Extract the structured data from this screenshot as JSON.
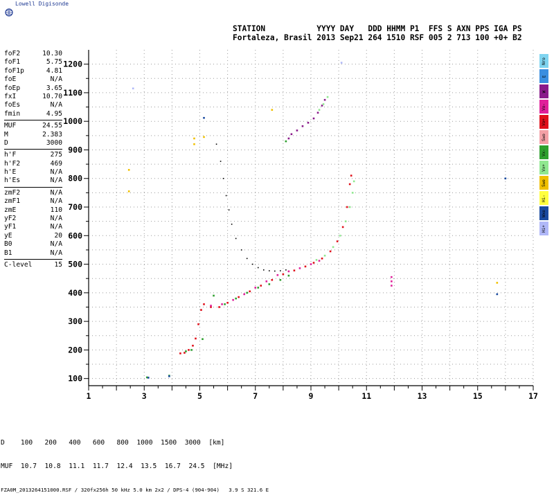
{
  "brand": "Lowell Digisonde",
  "header": {
    "line1": "STATION           YYYY DAY   DDD HHMM P1  FFS S AXN PPS IGA PS",
    "line2": "Fortaleza, Brasil 2013 Sep21 264 1510 RSF 005 2 713 100 +0+ B2"
  },
  "params": [
    [
      [
        "foF2",
        "10.30"
      ],
      [
        "foF1",
        "5.75"
      ],
      [
        "foF1p",
        "4.81"
      ],
      [
        "foE",
        "N/A"
      ],
      [
        "foEp",
        "3.65"
      ],
      [
        "fxI",
        "10.70"
      ],
      [
        "foEs",
        "N/A"
      ],
      [
        "fmin",
        "4.95"
      ]
    ],
    [
      [
        "MUF",
        "24.55"
      ],
      [
        "M",
        "2.383"
      ],
      [
        "D",
        "3000"
      ]
    ],
    [
      [
        "h'F",
        "275"
      ],
      [
        "h'F2",
        "469"
      ],
      [
        "h'E",
        "N/A"
      ],
      [
        "h'Es",
        "N/A"
      ]
    ],
    [
      [
        "zmF2",
        "N/A"
      ],
      [
        "zmF1",
        "N/A"
      ],
      [
        "zmE",
        "110"
      ],
      [
        "yF2",
        "N/A"
      ],
      [
        "yF1",
        "N/A"
      ],
      [
        "yE",
        "20"
      ],
      [
        "B0",
        "N/A"
      ],
      [
        "B1",
        "N/A"
      ]
    ],
    [
      [
        "C-level",
        "15"
      ]
    ]
  ],
  "legend": [
    {
      "label": "Nro",
      "color": "#7fd4f0"
    },
    {
      "label": "E",
      "color": "#3a8ee0"
    },
    {
      "label": "W",
      "color": "#8a1a8a"
    },
    {
      "label": "Vo-",
      "color": "#e0209a"
    },
    {
      "label": "Vo+",
      "color": "#e0101a"
    },
    {
      "label": "Swo",
      "color": "#f4a0a6"
    },
    {
      "label": "Vx-",
      "color": "#2ea02e"
    },
    {
      "label": "Vx+",
      "color": "#90e890"
    },
    {
      "label": "Swe",
      "color": "#f0c000"
    },
    {
      "label": "Hi-",
      "color": "#ffff40"
    },
    {
      "label": "Wxe",
      "color": "#1a4aa0"
    },
    {
      "label": "Hi+",
      "color": "#b0b8f8"
    }
  ],
  "bottom": {
    "d_row": "D    100   200   400   600   800  1000  1500  3000  [km]",
    "muf_row": "MUF  10.7  10.8  11.1  11.7  12.4  13.5  16.7  24.5  [MHz]",
    "file": "FZA0M_2013264151000.RSF / 320fx256h 50 kHz 5.0 km 2x2 / DPS-4 (904-904)   3.9 S 321.6 E"
  },
  "chart_data": {
    "type": "scatter",
    "xlabel": "",
    "ylabel": "",
    "xlim": [
      1,
      17
    ],
    "ylim": [
      75,
      1250
    ],
    "xticks": [
      "1",
      "3",
      "5",
      "7",
      "9",
      "11",
      "13",
      "15",
      "17"
    ],
    "yticks": [
      "100",
      "200",
      "300",
      "400",
      "500",
      "600",
      "700",
      "800",
      "900",
      "1000",
      "1100",
      "1200"
    ],
    "grid": true,
    "series": [
      {
        "color": "#e0101a",
        "points": [
          [
            4.3,
            188
          ],
          [
            4.45,
            190
          ],
          [
            4.6,
            200
          ],
          [
            4.75,
            215
          ],
          [
            4.85,
            240
          ],
          [
            4.95,
            290
          ],
          [
            5.05,
            340
          ],
          [
            5.15,
            360
          ],
          [
            5.4,
            350
          ],
          [
            5.7,
            350
          ],
          [
            6.0,
            365
          ],
          [
            6.4,
            385
          ],
          [
            6.8,
            405
          ],
          [
            7.2,
            425
          ],
          [
            7.6,
            445
          ],
          [
            8.0,
            465
          ],
          [
            8.4,
            478
          ],
          [
            8.8,
            492
          ],
          [
            9.1,
            505
          ],
          [
            9.4,
            520
          ],
          [
            9.7,
            545
          ],
          [
            9.95,
            580
          ],
          [
            10.15,
            630
          ],
          [
            10.3,
            700
          ],
          [
            10.4,
            780
          ],
          [
            10.45,
            810
          ]
        ]
      },
      {
        "color": "#e0209a",
        "points": [
          [
            5.4,
            355
          ],
          [
            5.8,
            360
          ],
          [
            6.2,
            375
          ],
          [
            6.6,
            395
          ],
          [
            7.0,
            418
          ],
          [
            7.4,
            440
          ],
          [
            7.8,
            462
          ],
          [
            8.2,
            475
          ],
          [
            8.6,
            486
          ],
          [
            9.0,
            500
          ],
          [
            9.3,
            512
          ]
        ]
      },
      {
        "color": "#8a1a8a",
        "points": [
          [
            8.2,
            940
          ],
          [
            8.3,
            955
          ],
          [
            8.5,
            968
          ],
          [
            8.7,
            983
          ],
          [
            8.9,
            995
          ],
          [
            9.1,
            1010
          ],
          [
            9.25,
            1030
          ],
          [
            9.4,
            1055
          ],
          [
            9.5,
            1075
          ]
        ]
      },
      {
        "color": "#2ea02e",
        "points": [
          [
            4.5,
            195
          ],
          [
            4.7,
            200
          ],
          [
            5.1,
            238
          ],
          [
            5.5,
            390
          ],
          [
            5.9,
            360
          ],
          [
            6.3,
            380
          ],
          [
            6.7,
            400
          ],
          [
            7.1,
            418
          ],
          [
            7.5,
            430
          ],
          [
            7.9,
            445
          ],
          [
            8.2,
            460
          ],
          [
            8.1,
            930
          ],
          [
            3.9,
            110
          ],
          [
            3.1,
            104
          ]
        ]
      },
      {
        "color": "#90e890",
        "points": [
          [
            9.2,
            515
          ],
          [
            9.5,
            530
          ],
          [
            9.8,
            560
          ],
          [
            10.05,
            600
          ],
          [
            10.25,
            650
          ],
          [
            10.4,
            700
          ],
          [
            10.5,
            750
          ],
          [
            10.55,
            790
          ],
          [
            9.3,
            1040
          ],
          [
            9.45,
            1060
          ],
          [
            9.6,
            1085
          ]
        ]
      },
      {
        "color": "#000000",
        "points": [
          [
            5.6,
            920
          ],
          [
            5.75,
            860
          ],
          [
            5.85,
            800
          ],
          [
            5.95,
            740
          ],
          [
            6.05,
            690
          ],
          [
            6.15,
            640
          ],
          [
            6.3,
            590
          ],
          [
            6.5,
            550
          ],
          [
            6.7,
            520
          ],
          [
            6.9,
            500
          ],
          [
            7.1,
            488
          ],
          [
            7.3,
            480
          ],
          [
            7.5,
            477
          ],
          [
            7.7,
            476
          ],
          [
            7.9,
            477
          ],
          [
            8.1,
            480
          ]
        ]
      },
      {
        "color": "#f0c000",
        "points": [
          [
            2.45,
            830
          ],
          [
            2.45,
            755
          ],
          [
            4.8,
            940
          ],
          [
            4.8,
            920
          ],
          [
            5.15,
            945
          ],
          [
            7.6,
            1040
          ],
          [
            15.7,
            435
          ]
        ]
      },
      {
        "color": "#b0b8f8",
        "points": [
          [
            2.6,
            1115
          ],
          [
            10.1,
            1205
          ]
        ]
      },
      {
        "color": "#1a4aa0",
        "points": [
          [
            5.15,
            1012
          ],
          [
            15.7,
            395
          ],
          [
            16.0,
            800
          ],
          [
            3.15,
            103
          ],
          [
            3.9,
            108
          ]
        ]
      },
      {
        "color": "#e0209a",
        "points": [
          [
            11.9,
            455
          ],
          [
            11.9,
            440
          ],
          [
            11.9,
            425
          ]
        ]
      }
    ]
  }
}
